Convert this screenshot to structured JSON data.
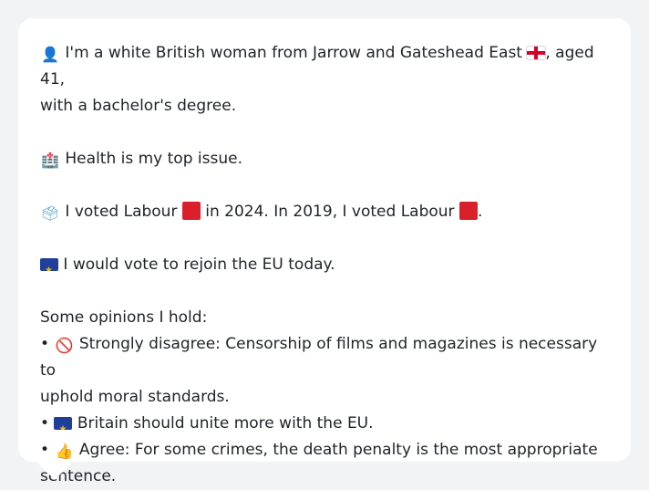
{
  "profile": {
    "intro_part1": " I'm a white British woman from Jarrow and Gateshead East ",
    "intro_part2": ", aged 41,",
    "intro_line2": "with a bachelor's degree.",
    "health": " Health is my top issue.",
    "vote_part1": " I voted Labour ",
    "vote_part2": " in 2024. In 2019, I voted Labour ",
    "vote_part3": ".",
    "eu": " I would vote to rejoin the EU today.",
    "opinions_header": "Some opinions I hold:",
    "opinions": [
      {
        "bullet": "• ",
        "line1": " Strongly disagree: Censorship of films and magazines is necessary to",
        "line2": "uphold moral standards."
      },
      {
        "bullet": "• ",
        "line1": " Britain should unite more with the EU."
      },
      {
        "bullet": "• ",
        "line1": " Agree: For some crimes, the death penalty is the most appropriate",
        "line2": "sentence."
      }
    ]
  },
  "icons": {
    "person": "👤",
    "hospital": "🏥",
    "ballot": "🗳",
    "prohibited": "🚫",
    "thumbs_up": "👍"
  },
  "colors": {
    "card": "#ffffff",
    "background": "#f2f3f5",
    "labour_red": "#d8212b",
    "eu_blue": "#1f3f9a"
  }
}
